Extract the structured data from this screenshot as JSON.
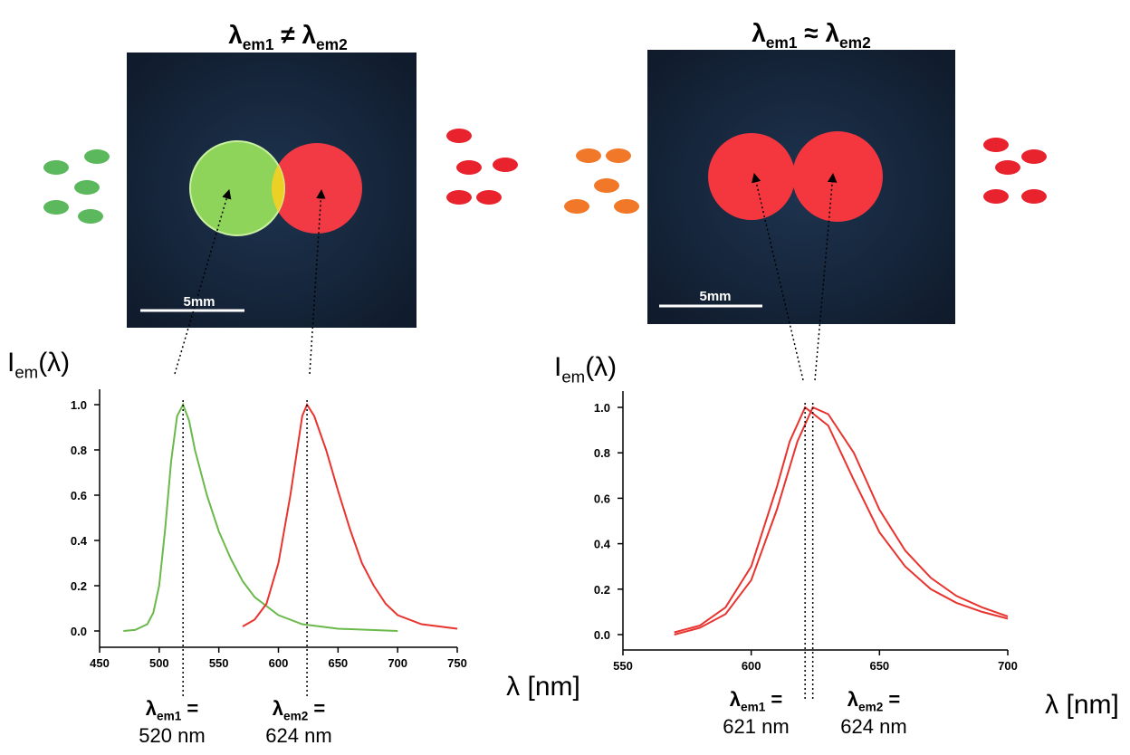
{
  "panels": [
    {
      "title": [
        "λ",
        "em1",
        " ≠ λ",
        "em2"
      ],
      "scale_label": "5mm"
    },
    {
      "title": [
        "λ",
        "em1",
        " ≈ λ",
        "em2"
      ],
      "scale_label": "5mm"
    }
  ],
  "chart_data": [
    {
      "type": "line",
      "ylabel": [
        "I",
        "em",
        "(λ)"
      ],
      "xlabel": "λ [nm]",
      "xlim": [
        450,
        750
      ],
      "xticks": [
        450,
        500,
        550,
        600,
        650,
        700,
        750
      ],
      "ylim": [
        -0.07,
        1.07
      ],
      "yticks": [
        {
          "value": 0,
          "label": "0.0"
        },
        0.2,
        0.4,
        0.6,
        0.8,
        {
          "value": 1,
          "label": "1.0"
        }
      ],
      "series": [
        {
          "color": "#6ab94a",
          "x": [
            470,
            480,
            490,
            495,
            500,
            505,
            510,
            515,
            520,
            525,
            530,
            540,
            550,
            560,
            570,
            580,
            600,
            620,
            650,
            700
          ],
          "values": [
            0.0,
            0.005,
            0.03,
            0.08,
            0.2,
            0.45,
            0.75,
            0.95,
            1.0,
            0.93,
            0.8,
            0.6,
            0.44,
            0.32,
            0.22,
            0.15,
            0.07,
            0.03,
            0.01,
            0.0
          ]
        },
        {
          "color": "#e8332e",
          "x": [
            570,
            580,
            590,
            600,
            610,
            620,
            624,
            630,
            640,
            650,
            660,
            670,
            680,
            690,
            700,
            720,
            750
          ],
          "values": [
            0.02,
            0.05,
            0.12,
            0.3,
            0.6,
            0.95,
            1.0,
            0.95,
            0.8,
            0.62,
            0.45,
            0.3,
            0.2,
            0.12,
            0.07,
            0.03,
            0.01
          ]
        }
      ],
      "peak_markers": [
        520,
        624
      ],
      "peak_labels": [
        {
          "symbol": [
            "λ",
            "em1",
            " ="
          ],
          "text": "520 nm"
        },
        {
          "symbol": [
            "λ",
            "em2",
            " ="
          ],
          "text": "624 nm"
        }
      ]
    },
    {
      "type": "line",
      "ylabel": [
        "I",
        "em",
        "(λ)"
      ],
      "xlabel": "λ [nm]",
      "xlim": [
        550,
        700
      ],
      "xticks": [
        550,
        600,
        650,
        700
      ],
      "ylim": [
        -0.07,
        1.07
      ],
      "yticks": [
        {
          "value": 0,
          "label": "0.0"
        },
        0.2,
        0.4,
        0.6,
        0.8,
        {
          "value": 1,
          "label": "1.0"
        }
      ],
      "series": [
        {
          "color": "#e8332e",
          "x": [
            570,
            580,
            590,
            600,
            610,
            615,
            621,
            630,
            640,
            650,
            660,
            670,
            680,
            690,
            700
          ],
          "values": [
            0.01,
            0.04,
            0.12,
            0.3,
            0.65,
            0.85,
            1.0,
            0.92,
            0.68,
            0.45,
            0.3,
            0.2,
            0.14,
            0.1,
            0.07
          ]
        },
        {
          "color": "#e8332e",
          "x": [
            570,
            580,
            590,
            600,
            610,
            618,
            624,
            630,
            640,
            650,
            660,
            670,
            680,
            690,
            700
          ],
          "values": [
            0.0,
            0.03,
            0.09,
            0.24,
            0.55,
            0.85,
            1.0,
            0.97,
            0.8,
            0.55,
            0.37,
            0.25,
            0.17,
            0.12,
            0.08
          ]
        }
      ],
      "peak_markers": [
        621,
        624
      ],
      "peak_labels": [
        {
          "symbol": [
            "λ",
            "em1",
            " ="
          ],
          "text": "621 nm"
        },
        {
          "symbol": [
            "λ",
            "em2",
            " ="
          ],
          "text": "624 nm"
        }
      ]
    }
  ]
}
